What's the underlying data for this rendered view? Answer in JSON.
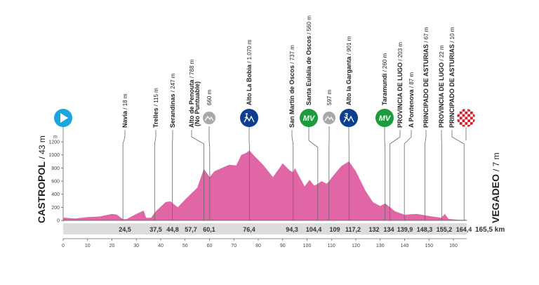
{
  "chart_data": {
    "type": "area",
    "xlabel": "",
    "ylabel": "m",
    "xlim": [
      0,
      165.5
    ],
    "ylim": [
      0,
      1200
    ],
    "x_ticks": [
      0,
      10,
      20,
      30,
      40,
      50,
      60,
      70,
      80,
      90,
      100,
      110,
      120,
      130,
      140,
      150,
      160
    ],
    "y_ticks": [
      0,
      200,
      400,
      600,
      800,
      1000,
      1200
    ],
    "grid": false,
    "fill_color": "#e066a6",
    "profile": {
      "km": [
        0,
        5,
        10,
        15,
        20,
        22,
        24.5,
        26,
        30,
        33,
        34,
        36,
        38,
        42,
        44,
        47,
        50,
        55,
        57.7,
        60.1,
        62,
        65,
        68,
        71,
        73,
        75,
        76.4,
        78,
        82,
        86,
        90,
        93,
        94.3,
        95,
        99,
        101,
        103,
        104.4,
        106,
        108,
        109,
        110,
        114,
        117.2,
        120,
        124,
        127,
        130,
        132,
        134,
        136,
        140,
        145,
        150,
        155,
        156.5,
        158,
        162,
        165.5
      ],
      "elev": [
        43,
        30,
        50,
        60,
        100,
        90,
        18,
        20,
        100,
        150,
        40,
        40,
        140,
        280,
        290,
        200,
        320,
        500,
        788,
        660,
        750,
        800,
        850,
        840,
        1000,
        1030,
        1070,
        1000,
        850,
        660,
        870,
        760,
        737,
        800,
        520,
        620,
        530,
        560,
        600,
        560,
        597,
        650,
        830,
        901,
        750,
        450,
        280,
        220,
        260,
        203,
        140,
        87,
        100,
        67,
        40,
        100,
        22,
        10,
        7
      ]
    },
    "start": {
      "name": "CASTROPOL",
      "alt": "/ 43 m"
    },
    "finish": {
      "name": "VEGADEO",
      "alt": "/ 7 m",
      "distance": "165,5 km"
    },
    "km_markers": [
      "24,5",
      "37,5",
      "44,8",
      "57,7",
      "60,1",
      "76,4",
      "94,3",
      "104,4",
      "109",
      "117,2",
      "132",
      "134",
      "139,9",
      "148,3",
      "155,2",
      "164,4"
    ],
    "points": [
      {
        "km": 24.5,
        "name": "Navia",
        "alt": " / 18 m",
        "icon": null
      },
      {
        "km": 37.5,
        "name": "Trelles",
        "alt": " / 115 m",
        "icon": null
      },
      {
        "km": 44.8,
        "name": "Serandinas",
        "alt": " / 247 m",
        "icon": null
      },
      {
        "km": 57.7,
        "name": "Alto de Penouta",
        "alt": " / 788 m",
        "sub": "(No Puntuable)",
        "icon": null
      },
      {
        "km": 60.1,
        "name": "",
        "alt": "660 m",
        "icon": "sprint-gray-icon"
      },
      {
        "km": 76.4,
        "name": "Alto La Bobia",
        "alt": " / 1.070 m",
        "icon": "climb-cat-1-icon",
        "icon_text": "1"
      },
      {
        "km": 94.3,
        "name": "San Martín de Oscos",
        "alt": " / 737 m",
        "icon": null
      },
      {
        "km": 104.4,
        "name": "Santa Eulalia de Oscos",
        "alt": " / 560 m",
        "icon": "mv-icon",
        "icon_text": "MV"
      },
      {
        "km": 109,
        "name": "",
        "alt": "597 m",
        "icon": "sprint-gray-icon"
      },
      {
        "km": 117.2,
        "name": "Alto la Garganta",
        "alt": " / 901 m",
        "icon": "climb-cat-3-icon",
        "icon_text": "3"
      },
      {
        "km": 132,
        "name": "Taramundi",
        "alt": " / 260 m",
        "icon": "mv-icon",
        "icon_text": "MV"
      },
      {
        "km": 134,
        "name": "PROVINCIA DE LUGO",
        "alt": " / 203 m",
        "icon": null
      },
      {
        "km": 139.9,
        "name": "A Pontenova",
        "alt": " / 87 m",
        "icon": null
      },
      {
        "km": 148.3,
        "name": "PRINCIPADO DE ASTURIAS",
        "alt": " / 67 m",
        "icon": null
      },
      {
        "km": 155.2,
        "name": "PROVINCIA DE LUGO",
        "alt": " / 22 m",
        "icon": null
      },
      {
        "km": 164.4,
        "name": "PRINCIPADO DE ASTURIAS",
        "alt": " / 10 m",
        "icon": null
      }
    ],
    "colors": {
      "start": "#1ba6e2",
      "climb": "#0e3e8e",
      "mv": "#1e9b3c",
      "sprint": "#a8a8a8",
      "finish": "#d0202a",
      "bar": "#dcdcdc"
    }
  }
}
